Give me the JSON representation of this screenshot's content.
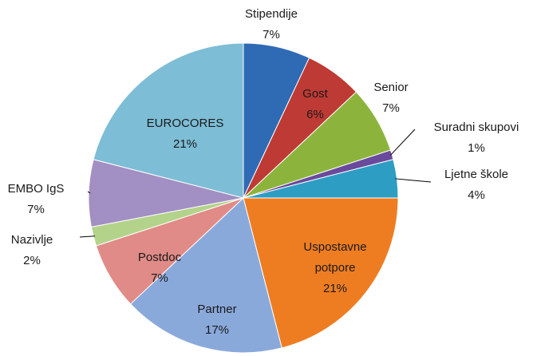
{
  "chart_data": {
    "type": "pie",
    "categories": [
      "Stipendije",
      "Gost",
      "Senior",
      "Suradni skupovi",
      "Ljetne škole",
      "Uspostavne potpore",
      "Partner",
      "Postdoc",
      "Nazivlje",
      "EMBO IgS",
      "EUROCORES"
    ],
    "values": [
      7,
      6,
      7,
      1,
      4,
      21,
      17,
      7,
      2,
      7,
      21
    ],
    "value_labels": [
      "7%",
      "6%",
      "7%",
      "1%",
      "4%",
      "21%",
      "17%",
      "7%",
      "2%",
      "7%",
      "21%"
    ],
    "colors": [
      "#2f6bb5",
      "#be3a34",
      "#8cb43c",
      "#6a4a9c",
      "#2e9dc3",
      "#ee7d22",
      "#8aa9db",
      "#e08b87",
      "#b3d38b",
      "#a28fc3",
      "#7dbdd6"
    ]
  }
}
